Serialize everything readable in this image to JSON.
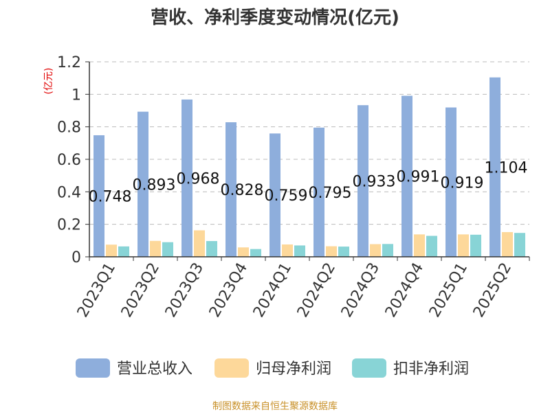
{
  "chart_data": {
    "type": "bar",
    "title": "营收、净利季度变动情况(亿元)",
    "ylabel": "(亿元)",
    "xlabel": "",
    "ylim": [
      0,
      1.2
    ],
    "yticks": [
      {
        "value": 0,
        "label": "0"
      },
      {
        "value": 0.2,
        "label": "0.2"
      },
      {
        "value": 0.4,
        "label": "0.4"
      },
      {
        "value": 0.6,
        "label": "0.6"
      },
      {
        "value": 0.8,
        "label": "0.8"
      },
      {
        "value": 1.0,
        "label": "1"
      },
      {
        "value": 1.2,
        "label": "1.2"
      }
    ],
    "grid": "horizontal-dashed",
    "legend_position": "bottom",
    "categories": [
      "2023Q1",
      "2023Q2",
      "2023Q3",
      "2023Q4",
      "2024Q1",
      "2024Q2",
      "2024Q3",
      "2024Q4",
      "2025Q1",
      "2025Q2"
    ],
    "series": [
      {
        "name": "营业总收入",
        "color": "#8eaedc",
        "values": [
          0.748,
          0.893,
          0.968,
          0.828,
          0.759,
          0.795,
          0.933,
          0.991,
          0.919,
          1.104
        ],
        "labels": [
          "0.748",
          "0.893",
          "0.968",
          "0.828",
          "0.759",
          "0.795",
          "0.933",
          "0.991",
          "0.919",
          "1.104"
        ]
      },
      {
        "name": "归母净利润",
        "color": "#fdd89a",
        "values": [
          0.075,
          0.098,
          0.163,
          0.058,
          0.076,
          0.065,
          0.078,
          0.138,
          0.138,
          0.152
        ]
      },
      {
        "name": "扣非净利润",
        "color": "#88d4d6",
        "values": [
          0.064,
          0.09,
          0.097,
          0.048,
          0.07,
          0.063,
          0.079,
          0.129,
          0.136,
          0.147
        ]
      }
    ]
  },
  "source": "制图数据来自恒生聚源数据库"
}
